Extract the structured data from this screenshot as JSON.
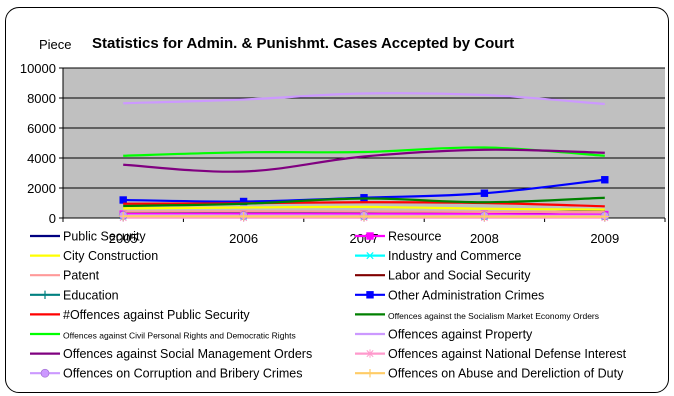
{
  "chart_data": {
    "type": "line",
    "title": "Statistics for Admin. & Punishmt. Cases Accepted by Court",
    "ylabel": "Piece",
    "xlabel": "",
    "categories": [
      "2005",
      "2006",
      "2007",
      "2008",
      "2009"
    ],
    "ylim": [
      0,
      10000
    ],
    "yticks": [
      0,
      2000,
      4000,
      6000,
      8000,
      10000
    ],
    "ytick_labels": [
      "0",
      "2000",
      "4000",
      "6000",
      "8000",
      "10000"
    ],
    "grid": true,
    "plot_background": "#c0c0c0",
    "legend_position": "bottom",
    "series": [
      {
        "name": "Public Security",
        "color": "#000080",
        "marker": "none",
        "values": [
          330,
          320,
          310,
          300,
          480
        ]
      },
      {
        "name": "Resource",
        "color": "#ff00ff",
        "marker": "square",
        "values": [
          260,
          270,
          270,
          260,
          230
        ]
      },
      {
        "name": "City Construction",
        "color": "#ffff00",
        "marker": "none",
        "values": [
          640,
          700,
          740,
          620,
          560
        ]
      },
      {
        "name": "Industry and Commerce",
        "color": "#00ffff",
        "marker": "x",
        "values": [
          130,
          120,
          110,
          100,
          90
        ]
      },
      {
        "name": "Patent",
        "color": "#ff9999",
        "marker": "none",
        "values": [
          420,
          440,
          430,
          410,
          400
        ]
      },
      {
        "name": " Labor and Social Security",
        "color": "#800000",
        "marker": "none",
        "values": [
          90,
          90,
          80,
          80,
          70
        ]
      },
      {
        "name": "Education",
        "color": "#008080",
        "marker": "plus",
        "values": [
          60,
          60,
          50,
          50,
          50
        ]
      },
      {
        "name": "Other Administration Crimes",
        "color": "#0000ff",
        "marker": "square",
        "values": [
          1200,
          1100,
          1350,
          1650,
          2550
        ]
      },
      {
        "name": "#Offences against Public Security",
        "color": "#ff0000",
        "marker": "none",
        "values": [
          950,
          980,
          1050,
          1000,
          780
        ]
      },
      {
        "name": "Offences against the Socialism Market Economy Orders",
        "color": "#008000",
        "marker": "none",
        "values": [
          800,
          950,
          1300,
          1050,
          1350
        ]
      },
      {
        "name": "Offences against Civil Personal Rights and Democratic Rights",
        "color": "#00ff00",
        "marker": "none",
        "values": [
          4150,
          4380,
          4400,
          4700,
          4150
        ]
      },
      {
        "name": "Offences against Property",
        "color": "#cc99ff",
        "marker": "none",
        "values": [
          7650,
          7900,
          8300,
          8200,
          7600
        ]
      },
      {
        "name": "Offences against Social Management Orders",
        "color": "#800080",
        "marker": "none",
        "values": [
          3550,
          3100,
          4100,
          4550,
          4350
        ]
      },
      {
        "name": "Offences against National Defense Interest",
        "color": "#ff99cc",
        "marker": "star",
        "values": [
          20,
          20,
          20,
          20,
          20
        ]
      },
      {
        "name": "Offences on Corruption and Bribery Crimes",
        "color": "#cc99ff",
        "marker": "circle",
        "values": [
          180,
          170,
          160,
          150,
          140
        ]
      },
      {
        "name": "Offences on Abuse and Dereliction of Duty",
        "color": "#ffcc66",
        "marker": "plus",
        "values": [
          120,
          110,
          100,
          100,
          90
        ]
      }
    ]
  }
}
